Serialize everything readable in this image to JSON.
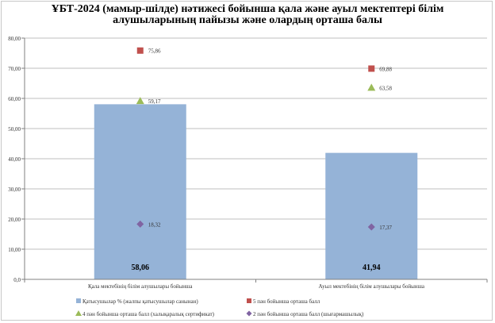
{
  "title": {
    "line1": "ҰБТ-2024 (мамыр-шілде) нәтижесі бойынша қала және ауыл мектептері білім",
    "line2": "алушыларының  пайызы және олардың орташа  балы"
  },
  "chart_data": {
    "type": "bar",
    "categories": [
      "Қала мектебінің білім алушылары бойынша",
      "Ауыл мектебінің  білім алушылары бойынша"
    ],
    "ylim": [
      0,
      80
    ],
    "yticks": [
      "0,0",
      "10,00",
      "20,00",
      "30,00",
      "40,00",
      "50,00",
      "60,00",
      "70,00",
      "80,00"
    ],
    "grid": true,
    "legend_position": "bottom",
    "bar_series": {
      "name": "Қатысушылар %  (жалпы қатысушылар санынан)",
      "values": [
        58.06,
        41.94
      ],
      "labels": [
        "58,06",
        "41,94"
      ],
      "color": "#95b3d7"
    },
    "marker_series": [
      {
        "name": "5 пән бойынша орташа балл",
        "marker": "square",
        "color": "#c0504d",
        "values": [
          75.86,
          69.88
        ],
        "labels": [
          "75,86",
          "69,88"
        ]
      },
      {
        "name": "4 пән бойынша орташа балл (халықаралық  сертификат)",
        "marker": "triangle",
        "color": "#9bbb59",
        "values": [
          59.17,
          63.58
        ],
        "labels": [
          "59,17",
          "63,58"
        ]
      },
      {
        "name": "2 пән бойынша орташа балл (шығармашылық)",
        "marker": "diamond",
        "color": "#8064a2",
        "values": [
          18.32,
          17.37
        ],
        "labels": [
          "18,32",
          "17,37"
        ]
      }
    ]
  }
}
